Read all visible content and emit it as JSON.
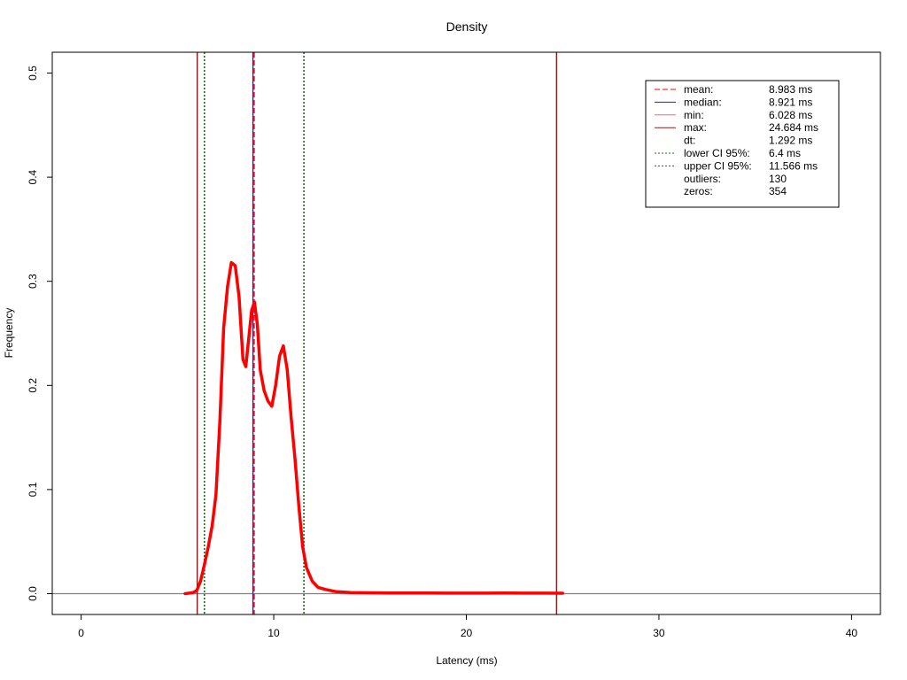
{
  "chart_data": {
    "type": "line",
    "title": "Density",
    "xlabel": "Latency (ms)",
    "ylabel": "Frequency",
    "xlim": [
      -1.5,
      41.5
    ],
    "ylim": [
      -0.02,
      0.52
    ],
    "xticks": [
      0,
      10,
      20,
      30,
      40
    ],
    "yticks": [
      0.0,
      0.1,
      0.2,
      0.3,
      0.4,
      0.5
    ],
    "xtick_labels": [
      "0",
      "10",
      "20",
      "30",
      "40"
    ],
    "ytick_labels": [
      "0.0",
      "0.1",
      "0.2",
      "0.3",
      "0.4",
      "0.5"
    ],
    "density": {
      "color": "#ff0000",
      "x": [
        5.4,
        5.8,
        6.0,
        6.2,
        6.4,
        6.6,
        6.8,
        7.0,
        7.2,
        7.4,
        7.6,
        7.8,
        8.0,
        8.2,
        8.4,
        8.55,
        8.7,
        8.85,
        9.0,
        9.15,
        9.3,
        9.5,
        9.7,
        9.9,
        10.1,
        10.3,
        10.5,
        10.7,
        10.9,
        11.1,
        11.3,
        11.5,
        11.7,
        12.0,
        12.3,
        12.7,
        13.2,
        14.0,
        15.0,
        16.0,
        17.0,
        18.0,
        19.0,
        20.0,
        21.0,
        22.0,
        23.0,
        24.0,
        25.0
      ],
      "y": [
        0.0,
        0.001,
        0.003,
        0.012,
        0.028,
        0.045,
        0.065,
        0.095,
        0.165,
        0.255,
        0.295,
        0.318,
        0.315,
        0.285,
        0.225,
        0.218,
        0.245,
        0.272,
        0.28,
        0.258,
        0.215,
        0.195,
        0.185,
        0.18,
        0.2,
        0.228,
        0.238,
        0.215,
        0.17,
        0.13,
        0.085,
        0.045,
        0.025,
        0.012,
        0.006,
        0.004,
        0.002,
        0.001,
        0.0008,
        0.0006,
        0.0007,
        0.0006,
        0.0005,
        0.0005,
        0.0005,
        0.0006,
        0.0005,
        0.0005,
        0.0004
      ]
    },
    "vertical_lines": [
      {
        "name": "min",
        "x": 6.028,
        "color": "#8b1a1a",
        "dash": "solid"
      },
      {
        "name": "lower-ci",
        "x": 6.4,
        "color": "#1a6b1a",
        "dash": "dotted"
      },
      {
        "name": "median",
        "x": 8.921,
        "color": "#1a1aff",
        "dash": "solid"
      },
      {
        "name": "mean",
        "x": 8.983,
        "color": "#ff0000",
        "dash": "dashed"
      },
      {
        "name": "upper-ci",
        "x": 11.566,
        "color": "#1a6b1a",
        "dash": "dotted"
      },
      {
        "name": "max",
        "x": 24.684,
        "color": "#8b1a1a",
        "dash": "solid"
      }
    ],
    "baseline": {
      "y": 0.0,
      "color": "#808080"
    },
    "legend": {
      "position": "top-right",
      "items": [
        {
          "label": "mean:",
          "value": "8.983 ms",
          "color": "#ff0000",
          "dash": "dashed"
        },
        {
          "label": "median:",
          "value": "8.921 ms",
          "color": "#1a1aff",
          "dash": "solid"
        },
        {
          "label": "min:",
          "value": "6.028 ms",
          "color": "#ff5a8c",
          "dash": "solid"
        },
        {
          "label": "max:",
          "value": "24.684 ms",
          "color": "#8b1a1a",
          "dash": "solid"
        },
        {
          "label": "dt:",
          "value": "1.292 ms",
          "color": "",
          "dash": "none"
        },
        {
          "label": "lower CI 95%:",
          "value": "6.4 ms",
          "color": "#1a6b1a",
          "dash": "dotted"
        },
        {
          "label": "upper CI 95%:",
          "value": "11.566 ms",
          "color": "#1a6b1a",
          "dash": "dotted"
        },
        {
          "label": "outliers:",
          "value": "130",
          "color": "",
          "dash": "none"
        },
        {
          "label": "zeros:",
          "value": "354",
          "color": "",
          "dash": "none"
        }
      ]
    }
  }
}
